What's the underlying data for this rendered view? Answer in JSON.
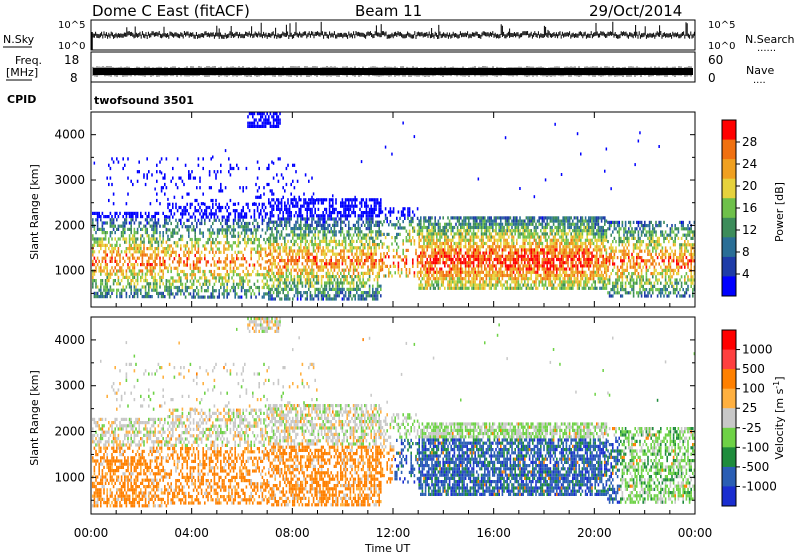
{
  "header": {
    "station": "Dome C East (fitACF)",
    "beam": "Beam 11",
    "date": "29/Oct/2014"
  },
  "side_labels": {
    "nsky": "N.Sky",
    "freq_line1": "Freq.",
    "freq_line2": "[MHz]",
    "cpid": "CPID",
    "nsearch": "N.Search",
    "nave": "Nave",
    "dots": "......",
    "dots_short": "...."
  },
  "cpid_text": "twofsound 3501",
  "colors": {
    "power": [
      "#0000ff",
      "#1e3ca8",
      "#2a6e96",
      "#3c8c5a",
      "#6ec04a",
      "#e6d23c",
      "#f0a020",
      "#f07010",
      "#ff0000"
    ],
    "velocity": [
      "#ff0000",
      "#ff4040",
      "#ff8000",
      "#ffb040",
      "#c8c8c8",
      "#6ed246",
      "#1e8c3c",
      "#2a5eb4",
      "#1a2ed0"
    ]
  },
  "chart_data": [
    {
      "type": "line",
      "title": "",
      "name": "noise-panel",
      "ylabel_left": "N.Sky",
      "ylabel_right": "N.Search",
      "yticks_left": [
        "10^5",
        "10^0"
      ],
      "yticks_right": [
        "10^5",
        "10^0"
      ],
      "xlim": [
        "00:00",
        "24:00"
      ]
    },
    {
      "type": "line",
      "title": "",
      "name": "freq-panel",
      "ylabel_left": "Freq. [MHz]",
      "ylabel_right": "Nave",
      "yticks_left": [
        "18",
        "8"
      ],
      "yticks_right": [
        "60",
        "0"
      ],
      "xlim": [
        "00:00",
        "24:00"
      ]
    },
    {
      "type": "heatmap",
      "title": "",
      "name": "power-panel",
      "ylabel": "Slant Range [km]",
      "ylim": [
        200,
        4500
      ],
      "yticks": [
        "1000",
        "2000",
        "3000",
        "4000"
      ],
      "colorbar_label": "Power [dB]",
      "colorbar_ticks": [
        "4",
        "8",
        "12",
        "16",
        "20",
        "24",
        "28"
      ],
      "colorbar_range": [
        0,
        32
      ],
      "xlim": [
        "00:00",
        "24:00"
      ]
    },
    {
      "type": "heatmap",
      "title": "",
      "name": "velocity-panel",
      "ylabel": "Slant Range [km]",
      "ylim": [
        200,
        4500
      ],
      "yticks": [
        "1000",
        "2000",
        "3000",
        "4000"
      ],
      "colorbar_label": "Velocity [m s-1]",
      "colorbar_label_main": "Velocity [m s",
      "colorbar_label_sup": "-1",
      "colorbar_label_end": "]",
      "colorbar_ticks": [
        "1000",
        "500",
        "100",
        "25",
        "-25",
        "-100",
        "-500",
        "-1000"
      ],
      "xlim": [
        "00:00",
        "24:00"
      ],
      "xticks": [
        "00:00",
        "04:00",
        "08:00",
        "12:00",
        "16:00",
        "20:00",
        "00:00"
      ],
      "xlabel": "Time UT"
    }
  ]
}
